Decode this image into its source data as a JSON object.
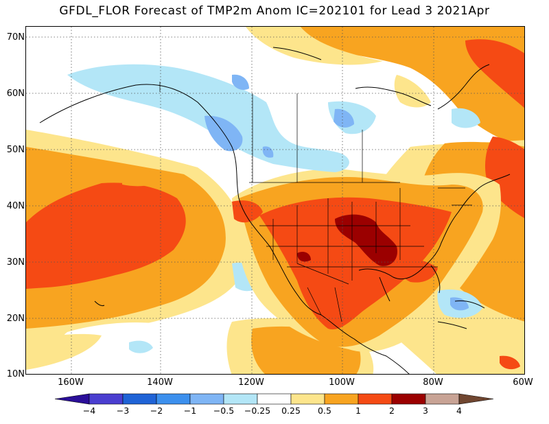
{
  "title": "GFDL_FLOR Forecast of TMP2m Anom IC=202101 for Lead 3 2021Apr",
  "lat_labels": [
    "70N",
    "60N",
    "50N",
    "40N",
    "30N",
    "20N",
    "10N"
  ],
  "lon_labels": [
    "160W",
    "140W",
    "120W",
    "100W",
    "80W",
    "60W"
  ],
  "colorbar": {
    "labels": [
      "−4",
      "−3",
      "−2",
      "−1",
      "−0.5",
      "−0.25",
      "0.25",
      "0.5",
      "1",
      "2",
      "3",
      "4"
    ],
    "colors": [
      "#2b0f99",
      "#4a3ed0",
      "#1f63d6",
      "#3c90ee",
      "#7fb5f5",
      "#b3e6f7",
      "#ffffff",
      "#fde58c",
      "#f8a420",
      "#f54a14",
      "#9b0000",
      "#c8a395",
      "#704630"
    ]
  },
  "legend_colors": {
    "weak_warm": "#fde58c",
    "moderate_warm": "#f8a420",
    "strong_warm": "#f54a14",
    "very_strong_warm": "#9b0000",
    "weak_cold": "#b3e6f7",
    "moderate_cold": "#7fb5f5",
    "grid": "#555555",
    "coast": "#000000"
  }
}
